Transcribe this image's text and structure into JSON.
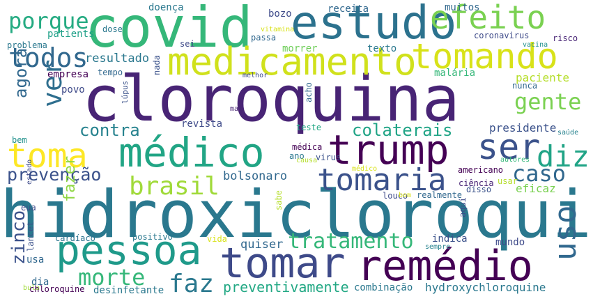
{
  "words": [
    {
      "t": "hidroxicloroquina",
      "c": "#2a788e"
    },
    {
      "t": "cloroquina",
      "c": "#482475"
    },
    {
      "t": "covid",
      "c": "#35b779"
    },
    {
      "t": "estudo",
      "c": "#2c728e"
    },
    {
      "t": "efeito",
      "c": "#7ad151"
    },
    {
      "t": "medicamento",
      "c": "#d0e11c"
    },
    {
      "t": "tomando",
      "c": "#d8e219"
    },
    {
      "t": "porque",
      "c": "#25ab82"
    },
    {
      "t": "todos",
      "c": "#31688e"
    },
    {
      "t": "resultado",
      "c": "#2a788e"
    },
    {
      "t": "médico",
      "c": "#21a585"
    },
    {
      "t": "trump",
      "c": "#440154"
    },
    {
      "t": "ser",
      "c": "#3b528b"
    },
    {
      "t": "diz",
      "c": "#20a486"
    },
    {
      "t": "toma",
      "c": "#fde725"
    },
    {
      "t": "pessoa",
      "c": "#1f9a8a"
    },
    {
      "t": "tomar",
      "c": "#3e4a89"
    },
    {
      "t": "remédio",
      "c": "#440154"
    },
    {
      "t": "uso",
      "c": "#31688e"
    },
    {
      "t": "gente",
      "c": "#7ad151"
    },
    {
      "t": "paciente",
      "c": "#b5de2b"
    },
    {
      "t": "ver",
      "c": "#2e6e8e"
    },
    {
      "t": "agora",
      "c": "#31688e"
    },
    {
      "t": "contra",
      "c": "#26828e"
    },
    {
      "t": "colaterais",
      "c": "#20a486"
    },
    {
      "t": "presidente",
      "c": "#3b528b"
    },
    {
      "t": "tomaria",
      "c": "#3b528b"
    },
    {
      "t": "brasil",
      "c": "#a0da39"
    },
    {
      "t": "prevenção",
      "c": "#3b528b"
    },
    {
      "t": "caso",
      "c": "#31688e"
    },
    {
      "t": "tratamento",
      "c": "#35b779"
    },
    {
      "t": "faz",
      "c": "#2a788e"
    },
    {
      "t": "morte",
      "c": "#35b779"
    },
    {
      "t": "zinco",
      "c": "#3b528b"
    },
    {
      "t": "preventivamente",
      "c": "#22a884"
    },
    {
      "t": "hydroxychloroquine",
      "c": "#2a788e"
    },
    {
      "t": "bolsonaro",
      "c": "#31688e"
    },
    {
      "t": "quiser",
      "c": "#31688e"
    },
    {
      "t": "fazer",
      "c": "#8fd744"
    },
    {
      "t": "eficaz",
      "c": "#7ad151"
    },
    {
      "t": "doença",
      "c": "#2a788e"
    },
    {
      "t": "bozo",
      "c": "#3e4a89"
    },
    {
      "t": "receita",
      "c": "#31688e"
    },
    {
      "t": "muitos",
      "c": "#31688e"
    },
    {
      "t": "dose",
      "c": "#2a788e"
    },
    {
      "t": "patients",
      "c": "#1fa088"
    },
    {
      "t": "vitamina",
      "c": "#d8e219"
    },
    {
      "t": "passa",
      "c": "#31688e"
    },
    {
      "t": "coronavirus",
      "c": "#3e4a89"
    },
    {
      "t": "risco",
      "c": "#482475"
    },
    {
      "t": "problema",
      "c": "#2a788e"
    },
    {
      "t": "sei",
      "c": "#3e4a89"
    },
    {
      "t": "vacina",
      "c": "#21918c"
    },
    {
      "t": "morrer",
      "c": "#6ece58"
    },
    {
      "t": "texto",
      "c": "#2a788e"
    },
    {
      "t": "empresa",
      "c": "#440154"
    },
    {
      "t": "tempo",
      "c": "#31688e"
    },
    {
      "t": "nada",
      "c": "#3b528b"
    },
    {
      "t": "melhor",
      "c": "#3e4a89"
    },
    {
      "t": "malária",
      "c": "#35b779"
    },
    {
      "t": "povo",
      "c": "#3e4a89"
    },
    {
      "t": "nunca",
      "c": "#31688e"
    },
    {
      "t": "lúpus",
      "c": "#3b528b"
    },
    {
      "t": "acho",
      "c": "#31688e"
    },
    {
      "t": "mal",
      "c": "#482475"
    },
    {
      "t": "revista",
      "c": "#3e4a89"
    },
    {
      "t": "teste",
      "c": "#22a884"
    },
    {
      "t": "saúde",
      "c": "#26828e"
    },
    {
      "t": "bem",
      "c": "#21918c"
    },
    {
      "t": "médica",
      "c": "#440154"
    },
    {
      "t": "autores",
      "c": "#35b779"
    },
    {
      "t": "ano",
      "c": "#2a788e"
    },
    {
      "t": "virus",
      "c": "#3b528b"
    },
    {
      "t": "causa",
      "c": "#b5de2b"
    },
    {
      "t": "americano",
      "c": "#440154"
    },
    {
      "t": "médico",
      "c": "#d8e219"
    },
    {
      "t": "usar",
      "c": "#b5de2b"
    },
    {
      "t": "estado",
      "c": "#3e4a89"
    },
    {
      "t": "ciência",
      "c": "#482475"
    },
    {
      "t": "disso",
      "c": "#3b528b"
    },
    {
      "t": "louco",
      "c": "#3e4a89"
    },
    {
      "t": "bom",
      "c": "#d8e219"
    },
    {
      "t": "realmente",
      "c": "#31688e"
    },
    {
      "t": "eua",
      "c": "#3e4a89"
    },
    {
      "t": "sabe",
      "c": "#b5de2b"
    },
    {
      "t": "aqui",
      "c": "#3e4a89"
    },
    {
      "t": "positivo",
      "c": "#2a788e"
    },
    {
      "t": "cardíaco",
      "c": "#2c728e"
    },
    {
      "t": "vida",
      "c": "#d8e219"
    },
    {
      "t": "indica",
      "c": "#3b528b"
    },
    {
      "t": "mundo",
      "c": "#3e4a89"
    },
    {
      "t": "sempre",
      "c": "#26828e"
    },
    {
      "t": "lancet",
      "c": "#3b528b"
    },
    {
      "t": "usa",
      "c": "#31688e"
    },
    {
      "t": "dia",
      "c": "#31688e"
    },
    {
      "t": "bula",
      "c": "#a0da39"
    },
    {
      "t": "chloroquine",
      "c": "#440154"
    },
    {
      "t": "desinfetante",
      "c": "#2a788e"
    },
    {
      "t": "combinação",
      "c": "#2a788e"
    }
  ]
}
